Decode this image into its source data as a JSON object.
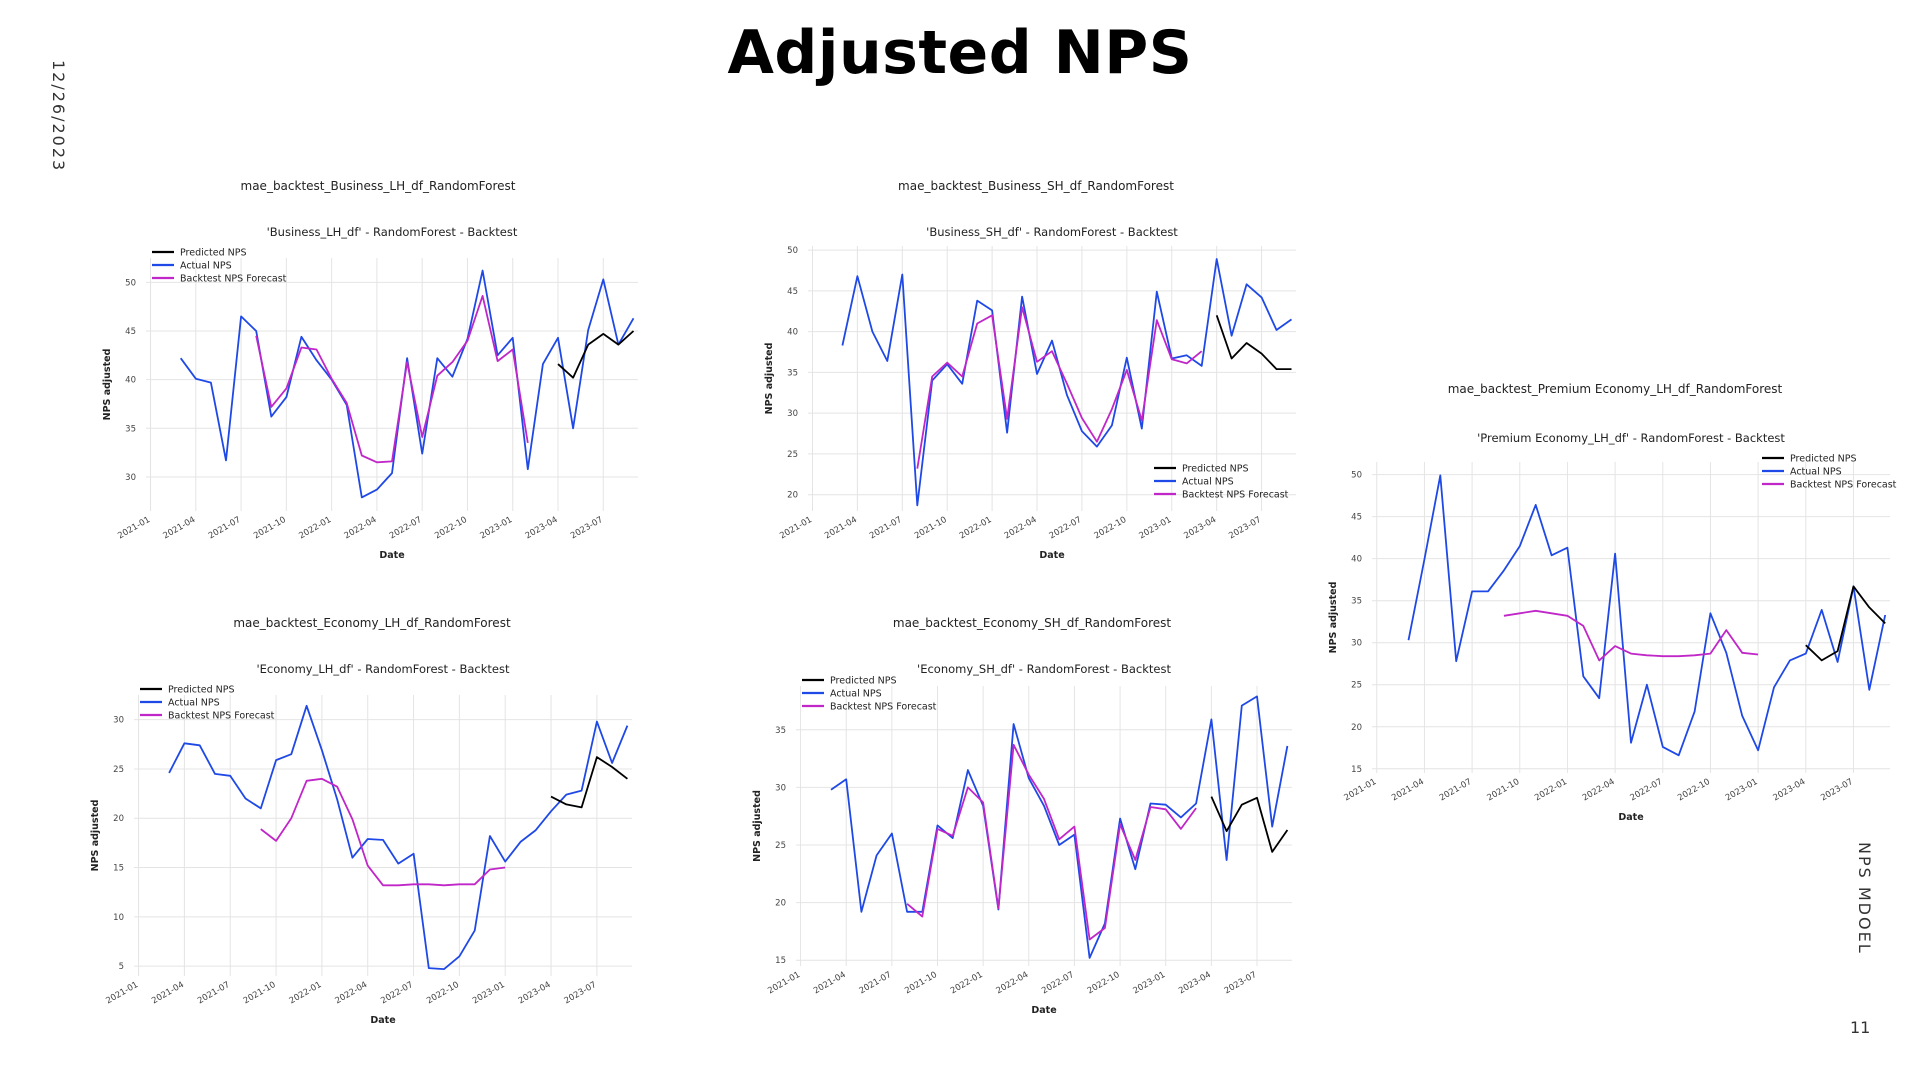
{
  "slide": {
    "title": "Adjusted NPS",
    "date": "12/26/2023",
    "footer": "NPS MDOEL",
    "page_number": "11"
  },
  "colors": {
    "predicted": "#000000",
    "actual": "#1f49e6",
    "backtest": "#c026c8",
    "grid": "#e4e4e4"
  },
  "chart_data": [
    {
      "id": "business-lh",
      "type": "line",
      "outer_title": "mae_backtest_Business_LH_df_RandomForest",
      "title": "'Business_LH_df' - RandomForest - Backtest",
      "xlabel": "Date",
      "ylabel": "NPS adjusted",
      "x_ticks": [
        "2021-01",
        "2021-04",
        "2021-07",
        "2021-10",
        "2022-01",
        "2022-04",
        "2022-07",
        "2022-10",
        "2023-01",
        "2023-04",
        "2023-07"
      ],
      "xlim": [
        -0.3,
        32.3
      ],
      "ylim": [
        26.5,
        52.5
      ],
      "y_ticks": [
        30,
        35,
        40,
        45,
        50
      ],
      "grid": true,
      "legend_position": "top-left",
      "series": [
        {
          "name": "Predicted NPS",
          "key": "predicted",
          "x_start": 27,
          "values": [
            41.6,
            40.2,
            43.6,
            44.7,
            43.6,
            45.0
          ]
        },
        {
          "name": "Actual NPS",
          "key": "actual",
          "x_start": 2,
          "values": [
            42.2,
            40.1,
            39.7,
            31.7,
            46.5,
            45.0,
            36.2,
            38.2,
            44.4,
            42.0,
            40.0,
            37.4,
            27.9,
            28.7,
            30.4,
            42.2,
            32.4,
            42.2,
            40.3,
            44.2,
            51.2,
            42.5,
            44.3,
            30.8,
            41.6,
            44.3,
            35.0,
            45.1,
            50.3,
            43.6,
            46.3
          ]
        },
        {
          "name": "Backtest NPS Forecast",
          "key": "backtest",
          "x_start": 7,
          "values": [
            44.5,
            37.2,
            39.1,
            43.3,
            43.1,
            40.1,
            37.6,
            32.2,
            31.5,
            31.6,
            41.8,
            34.1,
            40.4,
            41.8,
            44.0,
            48.6,
            41.9,
            43.1,
            33.5
          ]
        }
      ]
    },
    {
      "id": "business-sh",
      "type": "line",
      "outer_title": "mae_backtest_Business_SH_df_RandomForest",
      "title": "'Business_SH_df' - RandomForest - Backtest",
      "xlabel": "Date",
      "ylabel": "NPS adjusted",
      "x_ticks": [
        "2021-01",
        "2021-04",
        "2021-07",
        "2021-10",
        "2022-01",
        "2022-04",
        "2022-07",
        "2022-10",
        "2023-01",
        "2023-04",
        "2023-07"
      ],
      "xlim": [
        -0.3,
        32.3
      ],
      "ylim": [
        18,
        50.5
      ],
      "y_ticks": [
        20,
        25,
        30,
        35,
        40,
        45,
        50
      ],
      "grid": true,
      "legend_position": "bottom-right",
      "series": [
        {
          "name": "Predicted NPS",
          "key": "predicted",
          "x_start": 27,
          "values": [
            42.0,
            36.7,
            38.6,
            37.3,
            35.4,
            35.4
          ]
        },
        {
          "name": "Actual NPS",
          "key": "actual",
          "x_start": 2,
          "values": [
            38.3,
            46.8,
            40.0,
            36.4,
            47.0,
            18.7,
            34.0,
            36.0,
            33.6,
            43.8,
            42.6,
            27.6,
            44.3,
            34.8,
            38.9,
            32.2,
            27.8,
            25.9,
            28.5,
            36.8,
            28.1,
            44.9,
            36.7,
            37.1,
            35.8,
            48.9,
            39.5,
            45.8,
            44.2,
            40.2,
            41.5
          ]
        },
        {
          "name": "Backtest NPS Forecast",
          "key": "backtest",
          "x_start": 7,
          "values": [
            23.2,
            34.5,
            36.2,
            34.5,
            41.0,
            42.0,
            29.3,
            43.0,
            36.3,
            37.6,
            33.6,
            29.4,
            26.5,
            30.5,
            35.3,
            29.1,
            41.4,
            36.6,
            36.1,
            37.6
          ]
        }
      ]
    },
    {
      "id": "premium-economy-lh",
      "type": "line",
      "outer_title": "mae_backtest_Premium Economy_LH_df_RandomForest",
      "title": "'Premium Economy_LH_df' - RandomForest - Backtest",
      "xlabel": "Date",
      "ylabel": "NPS adjusted",
      "x_ticks": [
        "2021-01",
        "2021-04",
        "2021-07",
        "2021-10",
        "2022-01",
        "2022-04",
        "2022-07",
        "2022-10",
        "2023-01",
        "2023-04",
        "2023-07"
      ],
      "xlim": [
        -0.3,
        32.3
      ],
      "ylim": [
        14.5,
        51.5
      ],
      "y_ticks": [
        15,
        20,
        25,
        30,
        35,
        40,
        45,
        50
      ],
      "grid": true,
      "legend_position": "top-right",
      "series": [
        {
          "name": "Predicted NPS",
          "key": "predicted",
          "x_start": 27,
          "values": [
            29.7,
            27.9,
            29.0,
            36.7,
            34.2,
            32.3
          ]
        },
        {
          "name": "Actual NPS",
          "key": "actual",
          "x_start": 2,
          "values": [
            30.3,
            39.9,
            49.9,
            27.8,
            36.1,
            36.1,
            38.6,
            41.5,
            46.4,
            40.4,
            41.3,
            26.0,
            23.4,
            40.6,
            18.1,
            25.0,
            17.6,
            16.6,
            21.8,
            33.5,
            28.8,
            21.3,
            17.2,
            24.7,
            27.9,
            28.7,
            33.9,
            27.7,
            36.7,
            24.4,
            33.3
          ]
        },
        {
          "name": "Backtest NPS Forecast",
          "key": "backtest",
          "x_start": 8,
          "values": [
            33.2,
            33.5,
            33.8,
            33.5,
            33.2,
            32.0,
            27.9,
            29.6,
            28.7,
            28.5,
            28.4,
            28.4,
            28.5,
            28.7,
            31.5,
            28.8,
            28.6
          ]
        }
      ]
    },
    {
      "id": "economy-lh",
      "type": "line",
      "outer_title": "mae_backtest_Economy_LH_df_RandomForest",
      "title": "'Economy_LH_df' - RandomForest - Backtest",
      "xlabel": "Date",
      "ylabel": "NPS adjusted",
      "x_ticks": [
        "2021-01",
        "2021-04",
        "2021-07",
        "2021-10",
        "2022-01",
        "2022-04",
        "2022-07",
        "2022-10",
        "2023-01",
        "2023-04",
        "2023-07"
      ],
      "xlim": [
        -0.3,
        32.3
      ],
      "ylim": [
        4,
        32.5
      ],
      "y_ticks": [
        5,
        10,
        15,
        20,
        25,
        30
      ],
      "grid": true,
      "legend_position": "top-left",
      "series": [
        {
          "name": "Predicted NPS",
          "key": "predicted",
          "x_start": 27,
          "values": [
            22.2,
            21.4,
            21.1,
            26.2,
            25.2,
            24.0
          ]
        },
        {
          "name": "Actual NPS",
          "key": "actual",
          "x_start": 2,
          "values": [
            24.6,
            27.6,
            27.4,
            24.5,
            24.3,
            22.0,
            21.0,
            25.9,
            26.5,
            31.4,
            26.9,
            21.9,
            16.0,
            17.9,
            17.8,
            15.4,
            16.4,
            4.8,
            4.7,
            6.0,
            8.6,
            18.2,
            15.6,
            17.6,
            18.8,
            20.7,
            22.4,
            22.8,
            29.8,
            25.6,
            29.4
          ]
        },
        {
          "name": "Backtest NPS Forecast",
          "key": "backtest",
          "x_start": 8,
          "values": [
            18.9,
            17.7,
            20.0,
            23.8,
            24.0,
            23.2,
            19.9,
            15.2,
            13.2,
            13.2,
            13.3,
            13.3,
            13.2,
            13.3,
            13.3,
            14.8,
            15.0
          ]
        }
      ]
    },
    {
      "id": "economy-sh",
      "type": "line",
      "outer_title": "mae_backtest_Economy_SH_df_RandomForest",
      "title": "'Economy_SH_df' - RandomForest - Backtest",
      "xlabel": "Date",
      "ylabel": "NPS adjusted",
      "x_ticks": [
        "2021-01",
        "2021-04",
        "2021-07",
        "2021-10",
        "2022-01",
        "2022-04",
        "2022-07",
        "2022-10",
        "2023-01",
        "2023-04",
        "2023-07"
      ],
      "xlim": [
        -0.3,
        32.3
      ],
      "ylim": [
        14.5,
        38.8
      ],
      "y_ticks": [
        15,
        20,
        25,
        30,
        35
      ],
      "grid": true,
      "legend_position": "top-left",
      "series": [
        {
          "name": "Predicted NPS",
          "key": "predicted",
          "x_start": 27,
          "values": [
            29.2,
            26.2,
            28.5,
            29.1,
            24.4,
            26.3
          ]
        },
        {
          "name": "Actual NPS",
          "key": "actual",
          "x_start": 2,
          "values": [
            29.8,
            30.7,
            19.2,
            24.1,
            26.0,
            19.2,
            19.2,
            26.7,
            25.6,
            31.5,
            28.4,
            19.4,
            35.5,
            30.8,
            28.4,
            25.0,
            25.9,
            15.2,
            18.2,
            27.3,
            22.9,
            28.6,
            28.5,
            27.4,
            28.6,
            35.9,
            23.7,
            37.1,
            37.9,
            26.6,
            33.6
          ]
        },
        {
          "name": "Backtest NPS Forecast",
          "key": "backtest",
          "x_start": 7,
          "values": [
            19.9,
            18.8,
            26.4,
            25.8,
            30.0,
            28.7,
            19.5,
            33.7,
            31.1,
            29.0,
            25.5,
            26.6,
            16.8,
            17.8,
            26.8,
            23.7,
            28.3,
            28.1,
            26.4,
            28.2
          ]
        }
      ]
    }
  ]
}
